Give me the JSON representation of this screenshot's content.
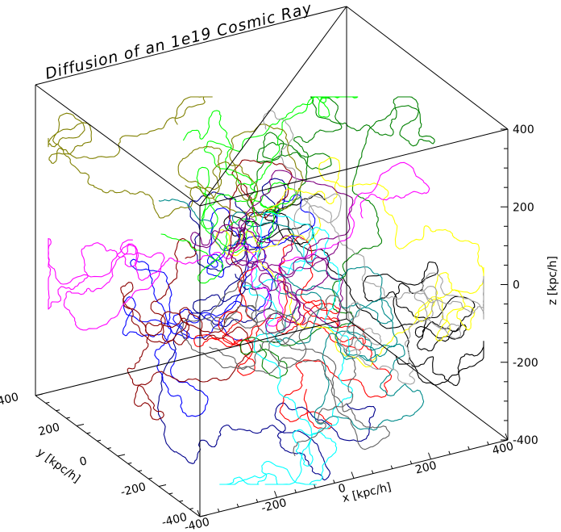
{
  "chart_data": {
    "type": "line",
    "title": "Diffusion of an 1e19 Cosmic Ray",
    "xlabel": "x [kpc/h]",
    "ylabel": "y [kpc/h]",
    "zlabel": "z [kpc/h]",
    "xlim": [
      -400,
      400
    ],
    "ylim": [
      -400,
      400
    ],
    "zlim": [
      -400,
      400
    ],
    "x_ticks": [
      "-400",
      "-200",
      "0",
      "200",
      "400"
    ],
    "y_ticks": [
      "-400",
      "-200",
      "0",
      "200",
      "400"
    ],
    "z_ticks": [
      "-400",
      "-200",
      "0",
      "200",
      "400"
    ],
    "series_colors": [
      "#000000",
      "#00008b",
      "#0000ff",
      "#ff0000",
      "#8b0000",
      "#008000",
      "#00ff00",
      "#808000",
      "#ffff00",
      "#00ffff",
      "#008b8b",
      "#ff00ff",
      "#800080",
      "#a0a0a0",
      "#606060"
    ]
  }
}
